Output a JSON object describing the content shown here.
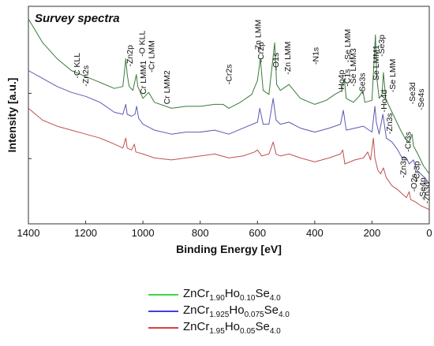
{
  "chart_data": {
    "type": "line",
    "title": "Survey spectra",
    "xlabel": "Binding Energy [eV]",
    "ylabel": "Intensity [a.u.]",
    "xlim": [
      1400,
      0
    ],
    "x_reversed": true,
    "x_ticks": [
      "1400",
      "1200",
      "1000",
      "800",
      "600",
      "400",
      "200",
      "0"
    ],
    "x_tick_values": [
      1400,
      1200,
      1000,
      800,
      600,
      400,
      200,
      0
    ],
    "y_ticks_labeled": false,
    "grid": false,
    "legend_placement": "below plot",
    "series": [
      {
        "legend": [
          {
            "t": "ZnCr",
            "k": "n"
          },
          {
            "t": "1.90",
            "k": "s"
          },
          {
            "t": "Ho",
            "k": "n"
          },
          {
            "t": "0.10",
            "k": "s"
          },
          {
            "t": "Se",
            "k": "n"
          },
          {
            "t": "4.0",
            "k": "s"
          }
        ],
        "color": "#00cc00",
        "trace_color": "#3a7a3a",
        "points": [
          [
            1400,
            1.0
          ],
          [
            1350,
            0.88
          ],
          [
            1300,
            0.8
          ],
          [
            1250,
            0.74
          ],
          [
            1200,
            0.71
          ],
          [
            1150,
            0.68
          ],
          [
            1100,
            0.65
          ],
          [
            1070,
            0.66
          ],
          [
            1060,
            0.8
          ],
          [
            1055,
            0.72
          ],
          [
            1048,
            0.66
          ],
          [
            1035,
            0.64
          ],
          [
            1023,
            0.72
          ],
          [
            1018,
            0.66
          ],
          [
            1000,
            0.6
          ],
          [
            980,
            0.63
          ],
          [
            960,
            0.58
          ],
          [
            900,
            0.55
          ],
          [
            850,
            0.56
          ],
          [
            800,
            0.56
          ],
          [
            750,
            0.57
          ],
          [
            720,
            0.57
          ],
          [
            700,
            0.55
          ],
          [
            660,
            0.58
          ],
          [
            620,
            0.62
          ],
          [
            600,
            0.69
          ],
          [
            590,
            0.8
          ],
          [
            580,
            0.64
          ],
          [
            560,
            0.62
          ],
          [
            540,
            0.88
          ],
          [
            533,
            0.67
          ],
          [
            520,
            0.64
          ],
          [
            490,
            0.67
          ],
          [
            450,
            0.6
          ],
          [
            400,
            0.57
          ],
          [
            360,
            0.59
          ],
          [
            330,
            0.62
          ],
          [
            305,
            0.64
          ],
          [
            297,
            0.7
          ],
          [
            290,
            0.6
          ],
          [
            265,
            0.58
          ],
          [
            245,
            0.61
          ],
          [
            232,
            0.64
          ],
          [
            225,
            0.58
          ],
          [
            200,
            0.59
          ],
          [
            188,
            0.92
          ],
          [
            183,
            0.7
          ],
          [
            175,
            0.6
          ],
          [
            165,
            0.62
          ],
          [
            160,
            0.73
          ],
          [
            152,
            0.6
          ],
          [
            140,
            0.56
          ],
          [
            120,
            0.5
          ],
          [
            100,
            0.44
          ],
          [
            85,
            0.4
          ],
          [
            70,
            0.38
          ],
          [
            60,
            0.42
          ],
          [
            55,
            0.36
          ],
          [
            40,
            0.32
          ],
          [
            20,
            0.26
          ],
          [
            10,
            0.24
          ],
          [
            0,
            0.22
          ]
        ]
      },
      {
        "legend": [
          {
            "t": "ZnCr",
            "k": "n"
          },
          {
            "t": "1.925",
            "k": "s"
          },
          {
            "t": "Ho",
            "k": "n"
          },
          {
            "t": "0.075",
            "k": "s"
          },
          {
            "t": "Se",
            "k": "n"
          },
          {
            "t": "4.0",
            "k": "s"
          }
        ],
        "color": "#0000cc",
        "trace_color": "#5a5ab4",
        "points": [
          [
            1400,
            0.74
          ],
          [
            1350,
            0.7
          ],
          [
            1300,
            0.66
          ],
          [
            1250,
            0.63
          ],
          [
            1200,
            0.61
          ],
          [
            1150,
            0.58
          ],
          [
            1100,
            0.53
          ],
          [
            1070,
            0.52
          ],
          [
            1060,
            0.57
          ],
          [
            1055,
            0.52
          ],
          [
            1040,
            0.51
          ],
          [
            1028,
            0.52
          ],
          [
            1022,
            0.56
          ],
          [
            1015,
            0.5
          ],
          [
            1000,
            0.47
          ],
          [
            960,
            0.44
          ],
          [
            900,
            0.42
          ],
          [
            850,
            0.43
          ],
          [
            800,
            0.43
          ],
          [
            750,
            0.44
          ],
          [
            700,
            0.42
          ],
          [
            650,
            0.45
          ],
          [
            600,
            0.48
          ],
          [
            592,
            0.55
          ],
          [
            580,
            0.47
          ],
          [
            560,
            0.47
          ],
          [
            545,
            0.6
          ],
          [
            535,
            0.49
          ],
          [
            520,
            0.47
          ],
          [
            490,
            0.48
          ],
          [
            450,
            0.45
          ],
          [
            400,
            0.43
          ],
          [
            350,
            0.45
          ],
          [
            310,
            0.47
          ],
          [
            300,
            0.54
          ],
          [
            290,
            0.44
          ],
          [
            260,
            0.45
          ],
          [
            230,
            0.46
          ],
          [
            200,
            0.43
          ],
          [
            190,
            0.56
          ],
          [
            185,
            0.48
          ],
          [
            175,
            0.42
          ],
          [
            162,
            0.52
          ],
          [
            150,
            0.4
          ],
          [
            130,
            0.38
          ],
          [
            110,
            0.34
          ],
          [
            95,
            0.3
          ],
          [
            80,
            0.3
          ],
          [
            70,
            0.27
          ],
          [
            55,
            0.29
          ],
          [
            45,
            0.24
          ],
          [
            30,
            0.22
          ],
          [
            15,
            0.2
          ],
          [
            0,
            0.17
          ]
        ]
      },
      {
        "legend": [
          {
            "t": "ZnCr",
            "k": "n"
          },
          {
            "t": "1.95",
            "k": "s"
          },
          {
            "t": "Ho",
            "k": "n"
          },
          {
            "t": "0.05",
            "k": "s"
          },
          {
            "t": "Se",
            "k": "n"
          },
          {
            "t": "4.0",
            "k": "s"
          }
        ],
        "color": "#cc0000",
        "trace_color": "#c05050",
        "points": [
          [
            1400,
            0.55
          ],
          [
            1350,
            0.49
          ],
          [
            1300,
            0.46
          ],
          [
            1250,
            0.44
          ],
          [
            1200,
            0.42
          ],
          [
            1150,
            0.4
          ],
          [
            1100,
            0.37
          ],
          [
            1070,
            0.35
          ],
          [
            1060,
            0.4
          ],
          [
            1055,
            0.35
          ],
          [
            1040,
            0.34
          ],
          [
            1030,
            0.37
          ],
          [
            1025,
            0.33
          ],
          [
            1000,
            0.32
          ],
          [
            960,
            0.3
          ],
          [
            900,
            0.29
          ],
          [
            850,
            0.3
          ],
          [
            800,
            0.31
          ],
          [
            750,
            0.32
          ],
          [
            700,
            0.3
          ],
          [
            650,
            0.31
          ],
          [
            610,
            0.33
          ],
          [
            600,
            0.34
          ],
          [
            585,
            0.31
          ],
          [
            560,
            0.32
          ],
          [
            545,
            0.38
          ],
          [
            535,
            0.32
          ],
          [
            520,
            0.31
          ],
          [
            490,
            0.32
          ],
          [
            450,
            0.3
          ],
          [
            400,
            0.28
          ],
          [
            350,
            0.3
          ],
          [
            310,
            0.32
          ],
          [
            302,
            0.34
          ],
          [
            295,
            0.27
          ],
          [
            260,
            0.29
          ],
          [
            230,
            0.3
          ],
          [
            215,
            0.33
          ],
          [
            205,
            0.29
          ],
          [
            195,
            0.4
          ],
          [
            190,
            0.3
          ],
          [
            180,
            0.24
          ],
          [
            170,
            0.22
          ],
          [
            160,
            0.25
          ],
          [
            150,
            0.2
          ],
          [
            130,
            0.16
          ],
          [
            110,
            0.14
          ],
          [
            95,
            0.12
          ],
          [
            80,
            0.1
          ],
          [
            70,
            0.13
          ],
          [
            65,
            0.09
          ],
          [
            50,
            0.08
          ],
          [
            30,
            0.06
          ],
          [
            15,
            0.05
          ],
          [
            0,
            0.04
          ]
        ]
      }
    ],
    "annotations": [
      {
        "label": "-C KLL",
        "x": 1232,
        "y": 0.7
      },
      {
        "label": "-Zn2s",
        "x": 1202,
        "y": 0.66
      },
      {
        "label": "-Zn2p",
        "x": 1047,
        "y": 0.76
      },
      {
        "label": "-O KLL",
        "x": 1005,
        "y": 0.81
      },
      {
        "label": "Cr LMM1",
        "x": 1000,
        "y": 0.62
      },
      {
        "label": "-Cr LMM",
        "x": 972,
        "y": 0.73
      },
      {
        "label": "Cr LMM2",
        "x": 918,
        "y": 0.57
      },
      {
        "label": "-Cr2s",
        "x": 702,
        "y": 0.67
      },
      {
        "label": "-Zn LMM",
        "x": 600,
        "y": 0.83
      },
      {
        "label": "-Cr2p",
        "x": 590,
        "y": 0.78
      },
      {
        "label": "-O1s",
        "x": 538,
        "y": 0.74
      },
      {
        "label": "-Zn LMM",
        "x": 496,
        "y": 0.72
      },
      {
        "label": "-N1s",
        "x": 398,
        "y": 0.77
      },
      {
        "label": "-Ho4p",
        "x": 308,
        "y": 0.63
      },
      {
        "label": "-Se LMM",
        "x": 287,
        "y": 0.78
      },
      {
        "label": "-C1s",
        "x": 288,
        "y": 0.66
      },
      {
        "label": "-Se LMM3",
        "x": 268,
        "y": 0.66
      },
      {
        "label": "-Se3s",
        "x": 235,
        "y": 0.62
      },
      {
        "label": "Se LMM1",
        "x": 188,
        "y": 0.69
      },
      {
        "label": "-Se3p",
        "x": 168,
        "y": 0.81
      },
      {
        "label": "-Ho4d",
        "x": 160,
        "y": 0.53
      },
      {
        "label": "-Se LMM",
        "x": 130,
        "y": 0.63
      },
      {
        "label": "-Zn3s",
        "x": 140,
        "y": 0.42
      },
      {
        "label": "-Se3d",
        "x": 60,
        "y": 0.57
      },
      {
        "label": "-Se4s",
        "x": 30,
        "y": 0.54
      },
      {
        "label": "-Cr3s",
        "x": 76,
        "y": 0.33
      },
      {
        "label": "-Zn3p",
        "x": 92,
        "y": 0.2
      },
      {
        "label": "-Cr3p",
        "x": 45,
        "y": 0.18
      },
      {
        "label": "-O2s",
        "x": 55,
        "y": 0.13
      },
      {
        "label": "-Se4p",
        "x": 25,
        "y": 0.09
      },
      {
        "label": "-Zn3d",
        "x": 10,
        "y": 0.07
      }
    ]
  }
}
